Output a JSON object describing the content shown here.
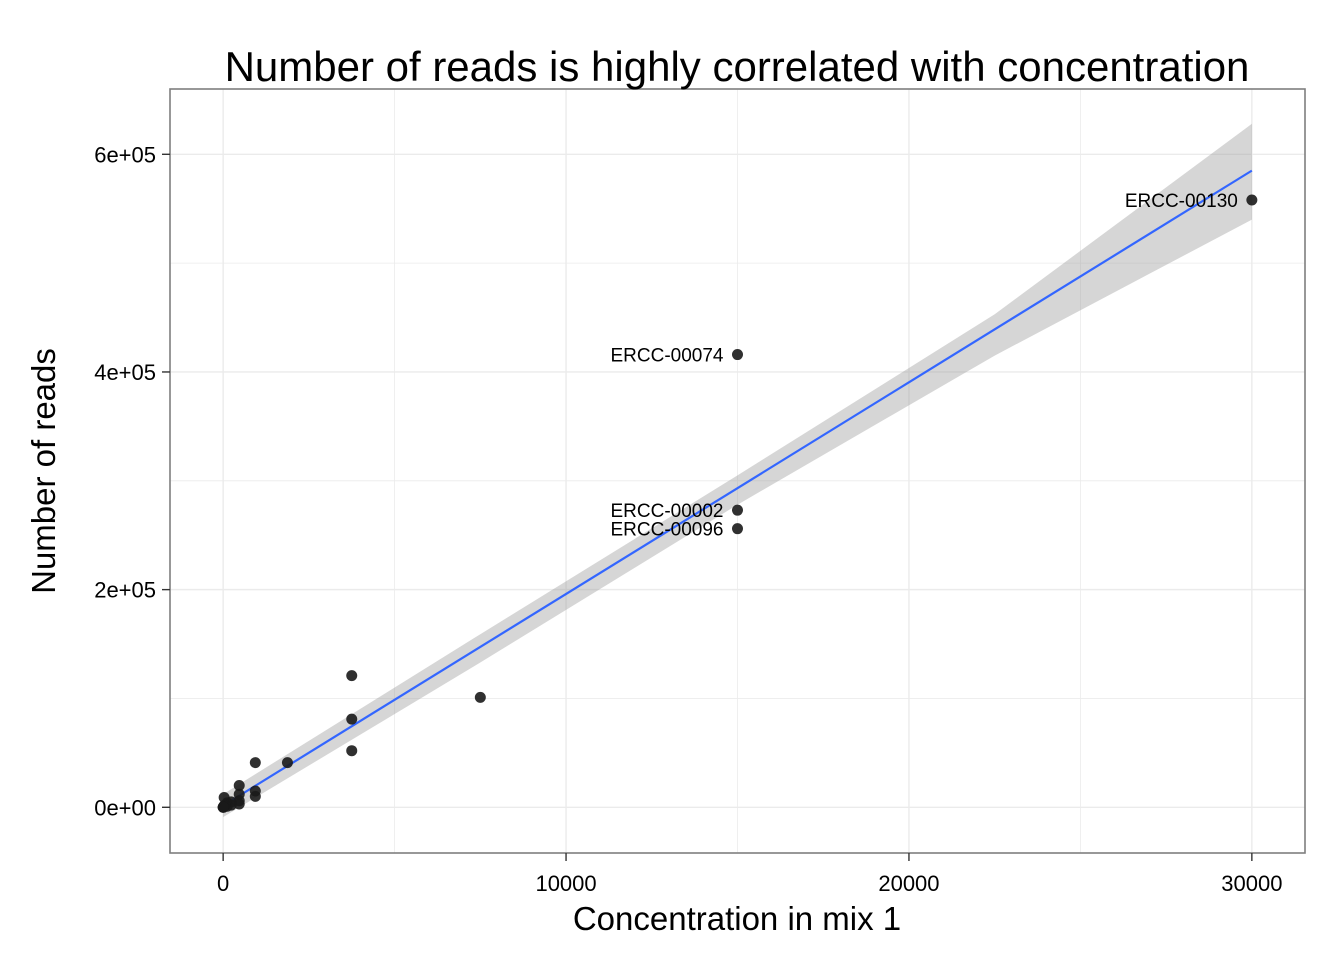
{
  "chart_data": {
    "type": "scatter",
    "title": "Number of reads is highly correlated with concentration",
    "xlabel": "Concentration in mix 1",
    "ylabel": "Number of reads",
    "xlim": [
      -1550,
      31550
    ],
    "ylim": [
      -42000,
      660000
    ],
    "x_ticks": [
      0,
      10000,
      20000,
      30000
    ],
    "x_tick_labels": [
      "0",
      "10000",
      "20000",
      "30000"
    ],
    "y_ticks": [
      0,
      200000,
      400000,
      600000
    ],
    "y_tick_labels": [
      "0e+00",
      "2e+05",
      "4e+05",
      "6e+05"
    ],
    "grid": true,
    "legend": "none",
    "colors": {
      "panel_border": "#7f7f7f",
      "gridline": "#ebebeb",
      "point": "#1a1a1a",
      "fit_line": "#3366ff",
      "confidence_band": "#999999"
    },
    "points": [
      {
        "x": 30000,
        "y": 558000
      },
      {
        "x": 15000,
        "y": 416000
      },
      {
        "x": 15000,
        "y": 273000
      },
      {
        "x": 15000,
        "y": 256000
      },
      {
        "x": 7500,
        "y": 101000
      },
      {
        "x": 3750,
        "y": 121000
      },
      {
        "x": 3750,
        "y": 81000
      },
      {
        "x": 3750,
        "y": 52000
      },
      {
        "x": 1875,
        "y": 41000
      },
      {
        "x": 938,
        "y": 41000
      },
      {
        "x": 938,
        "y": 15000
      },
      {
        "x": 938,
        "y": 10000
      },
      {
        "x": 469,
        "y": 20000
      },
      {
        "x": 469,
        "y": 12000
      },
      {
        "x": 469,
        "y": 6000
      },
      {
        "x": 469,
        "y": 3000
      },
      {
        "x": 234,
        "y": 5000
      },
      {
        "x": 234,
        "y": 2000
      },
      {
        "x": 117,
        "y": 4000
      },
      {
        "x": 117,
        "y": 1000
      },
      {
        "x": 58,
        "y": 2000
      },
      {
        "x": 29,
        "y": 9000
      },
      {
        "x": 29,
        "y": 1500
      },
      {
        "x": 15,
        "y": 500
      },
      {
        "x": 7,
        "y": 300
      },
      {
        "x": 4,
        "y": 100
      },
      {
        "x": 1,
        "y": 50
      },
      {
        "x": 0.5,
        "y": 20
      }
    ],
    "annotations": [
      {
        "label": "ERCC-00130",
        "x": 30000,
        "y": 558000
      },
      {
        "label": "ERCC-00074",
        "x": 15000,
        "y": 416000
      },
      {
        "label": "ERCC-00002",
        "x": 15000,
        "y": 273000
      },
      {
        "label": "ERCC-00096",
        "x": 15000,
        "y": 256000
      }
    ],
    "fit_line": {
      "method": "linear",
      "x": [
        0,
        30000
      ],
      "y": [
        1500,
        585000
      ]
    },
    "confidence_band": {
      "x": [
        0,
        7500,
        15000,
        22500,
        30000
      ],
      "upper": [
        12000,
        159000,
        305000,
        453000,
        628000
      ],
      "lower": [
        -9000,
        133000,
        278000,
        415000,
        540000
      ]
    }
  }
}
